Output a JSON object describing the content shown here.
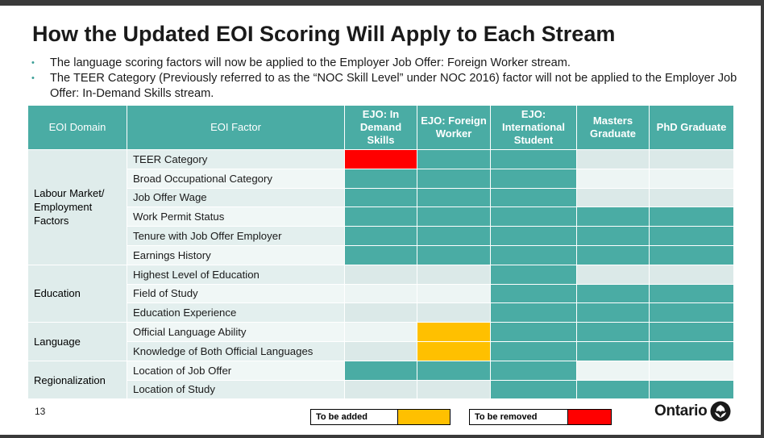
{
  "slide": {
    "title": "How the Updated EOI Scoring Will Apply to Each Stream",
    "bullets": [
      "The language scoring factors will now be applied to the Employer Job Offer: Foreign Worker stream.",
      "The TEER Category (Previously referred to as the “NOC Skill Level” under NOC 2016) factor will not be applied to the Employer Job Offer: In-Demand Skills stream."
    ],
    "page_number": "13"
  },
  "table": {
    "headers": [
      "EOI Domain",
      "EOI Factor",
      "EJO: In Demand Skills",
      "EJO: Foreign Worker",
      "EJO: International Student",
      "Masters Graduate",
      "PhD Graduate"
    ],
    "domains": [
      "Labour Market/ Employment Factors",
      "Education",
      "Language",
      "Regionalization"
    ],
    "factors": [
      "TEER Category",
      "Broad Occupational Category",
      "Job Offer Wage",
      "Work Permit Status",
      "Tenure with Job Offer Employer",
      "Earnings History",
      "Highest Level of Education",
      "Field of Study",
      "Education Experience",
      "Official Language Ability",
      "Knowledge of Both Official Languages",
      "Location of Job Offer",
      "Location of Study"
    ],
    "cell_status": [
      [
        "removed",
        "applied",
        "applied",
        "not_applied",
        "not_applied"
      ],
      [
        "applied",
        "applied",
        "applied",
        "not_applied",
        "not_applied"
      ],
      [
        "applied",
        "applied",
        "applied",
        "not_applied",
        "not_applied"
      ],
      [
        "applied",
        "applied",
        "applied",
        "applied",
        "applied"
      ],
      [
        "applied",
        "applied",
        "applied",
        "applied",
        "applied"
      ],
      [
        "applied",
        "applied",
        "applied",
        "applied",
        "applied"
      ],
      [
        "not_applied",
        "not_applied",
        "applied",
        "not_applied",
        "not_applied"
      ],
      [
        "not_applied",
        "not_applied",
        "applied",
        "applied",
        "applied"
      ],
      [
        "not_applied",
        "not_applied",
        "applied",
        "applied",
        "applied"
      ],
      [
        "not_applied",
        "added",
        "applied",
        "applied",
        "applied"
      ],
      [
        "not_applied",
        "added",
        "applied",
        "applied",
        "applied"
      ],
      [
        "applied",
        "applied",
        "applied",
        "not_applied",
        "not_applied"
      ],
      [
        "not_applied",
        "not_applied",
        "applied",
        "applied",
        "applied"
      ]
    ]
  },
  "legend": {
    "added_label": "To be added",
    "removed_label": "To be removed"
  },
  "colors": {
    "applied": "#4aaca4",
    "added": "#ffc000",
    "removed": "#ff0000"
  },
  "brand": {
    "name": "Ontario",
    "logo_icon": "trillium-icon"
  }
}
